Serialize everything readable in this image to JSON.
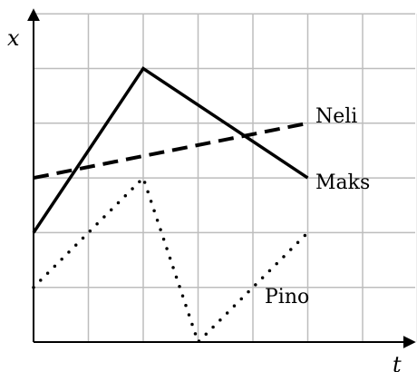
{
  "chart_data": {
    "type": "line",
    "xlabel": "t",
    "ylabel": "x",
    "xlim": [
      0,
      7
    ],
    "ylim": [
      0,
      6
    ],
    "grid": true,
    "series": [
      {
        "name": "Neli",
        "style": "dashed",
        "color": "#000000",
        "x": [
          0,
          5
        ],
        "y": [
          3,
          4
        ]
      },
      {
        "name": "Maks",
        "style": "solid",
        "color": "#000000",
        "x": [
          0,
          2,
          5
        ],
        "y": [
          2,
          5,
          3
        ]
      },
      {
        "name": "Pino",
        "style": "dotted",
        "color": "#000000",
        "x": [
          0,
          2,
          3,
          5
        ],
        "y": [
          1,
          3,
          0,
          2
        ]
      }
    ]
  }
}
